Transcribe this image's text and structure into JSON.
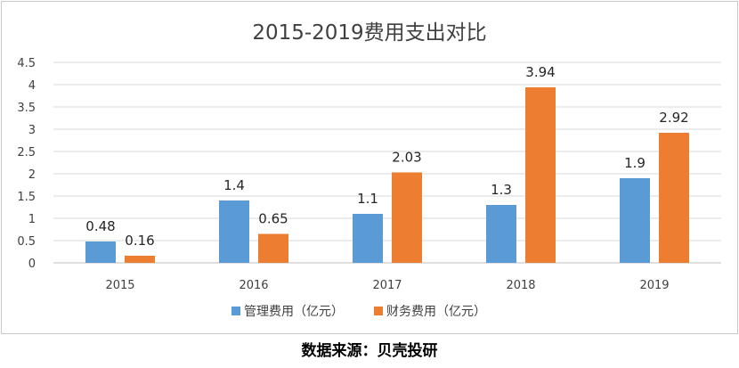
{
  "chart_data": {
    "type": "bar",
    "title": "2015-2019费用支出对比",
    "categories": [
      "2015",
      "2016",
      "2017",
      "2018",
      "2019"
    ],
    "series": [
      {
        "name": "管理费用（亿元）",
        "values": [
          0.48,
          1.4,
          1.1,
          1.3,
          1.9
        ],
        "labels": [
          "0.48",
          "1.4",
          "1.1",
          "1.3",
          "1.9"
        ],
        "color": "#5b9bd5"
      },
      {
        "name": "财务费用（亿元）",
        "values": [
          0.16,
          0.65,
          2.03,
          3.94,
          2.92
        ],
        "labels": [
          "0.16",
          "0.65",
          "2.03",
          "3.94",
          "2.92"
        ],
        "color": "#ed7d31"
      }
    ],
    "yticks": [
      "0",
      "0.5",
      "1",
      "1.5",
      "2",
      "2.5",
      "3",
      "3.5",
      "4",
      "4.5"
    ],
    "ylim": [
      0,
      4.5
    ],
    "xlabel": "",
    "ylabel": "",
    "grid": true,
    "legend": "bottom"
  },
  "caption": "数据来源：贝壳投研"
}
